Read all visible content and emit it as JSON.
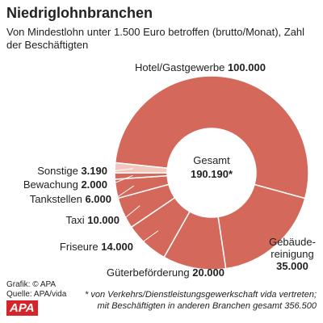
{
  "chart_data": {
    "type": "donut",
    "title": "Niedriglohnbranchen",
    "subtitle": "Von Mindestlohn unter 1.500 Euro betroffen (brutto/Monat), Zahl der Beschäftigten",
    "categories": [
      "Hotel/Gastgewerbe",
      "Gebäude-\nreinigung",
      "Güterbeförderung",
      "Friseure",
      "Taxi",
      "Tankstellen",
      "Bewachung",
      "Sonstige"
    ],
    "values": [
      100000,
      35000,
      20000,
      14000,
      10000,
      6000,
      2000,
      3190
    ],
    "value_labels": [
      "100.000",
      "35.000",
      "20.000",
      "14.000",
      "10.000",
      "6.000",
      "2.000",
      "3.190"
    ],
    "colors": [
      "#d4685a",
      "#d4685a",
      "#d4685a",
      "#d4685a",
      "#d4685a",
      "#d4685a",
      "#d4685a",
      "#f2c7be"
    ],
    "center_label": "Gesamt",
    "center_value": 190190,
    "center_value_label": "190.190*",
    "footnote": [
      "* von Verkehrs/Dienstleistungsgewerkschaft vida vertreten;",
      "mit Beschäftigten in anderen Branchen gesamt 356.500"
    ],
    "credits": [
      "Grafik: © APA",
      "Quelle: APA/vida"
    ],
    "logo": "APA"
  }
}
